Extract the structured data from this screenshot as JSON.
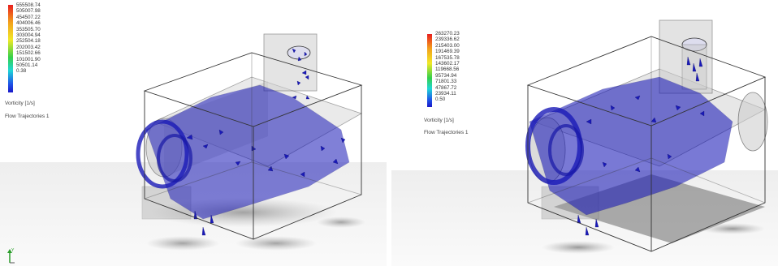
{
  "panels": [
    {
      "legend": {
        "values": [
          "555508.74",
          "505007.98",
          "454507.22",
          "404006.46",
          "353505.70",
          "303004.94",
          "252504.18",
          "202003.42",
          "151502.66",
          "101001.90",
          "50501.14",
          "0.38"
        ],
        "quantity": "Vorticity [1/s]",
        "plot_name": "Flow Trajectories 1"
      }
    },
    {
      "legend": {
        "values": [
          "263270.23",
          "239336.62",
          "215403.00",
          "191469.39",
          "167535.78",
          "143602.17",
          "119668.56",
          "95734.94",
          "71801.33",
          "47867.72",
          "23934.11",
          "0.50"
        ],
        "quantity": "Vorticity [1/s]",
        "plot_name": "Flow Trajectories 1"
      }
    }
  ],
  "triad": {
    "axis_label": "Y"
  },
  "colors": {
    "arrow": "#1a1ab8",
    "arrow_dark": "#0b0b6e",
    "box_edge": "#333333"
  }
}
